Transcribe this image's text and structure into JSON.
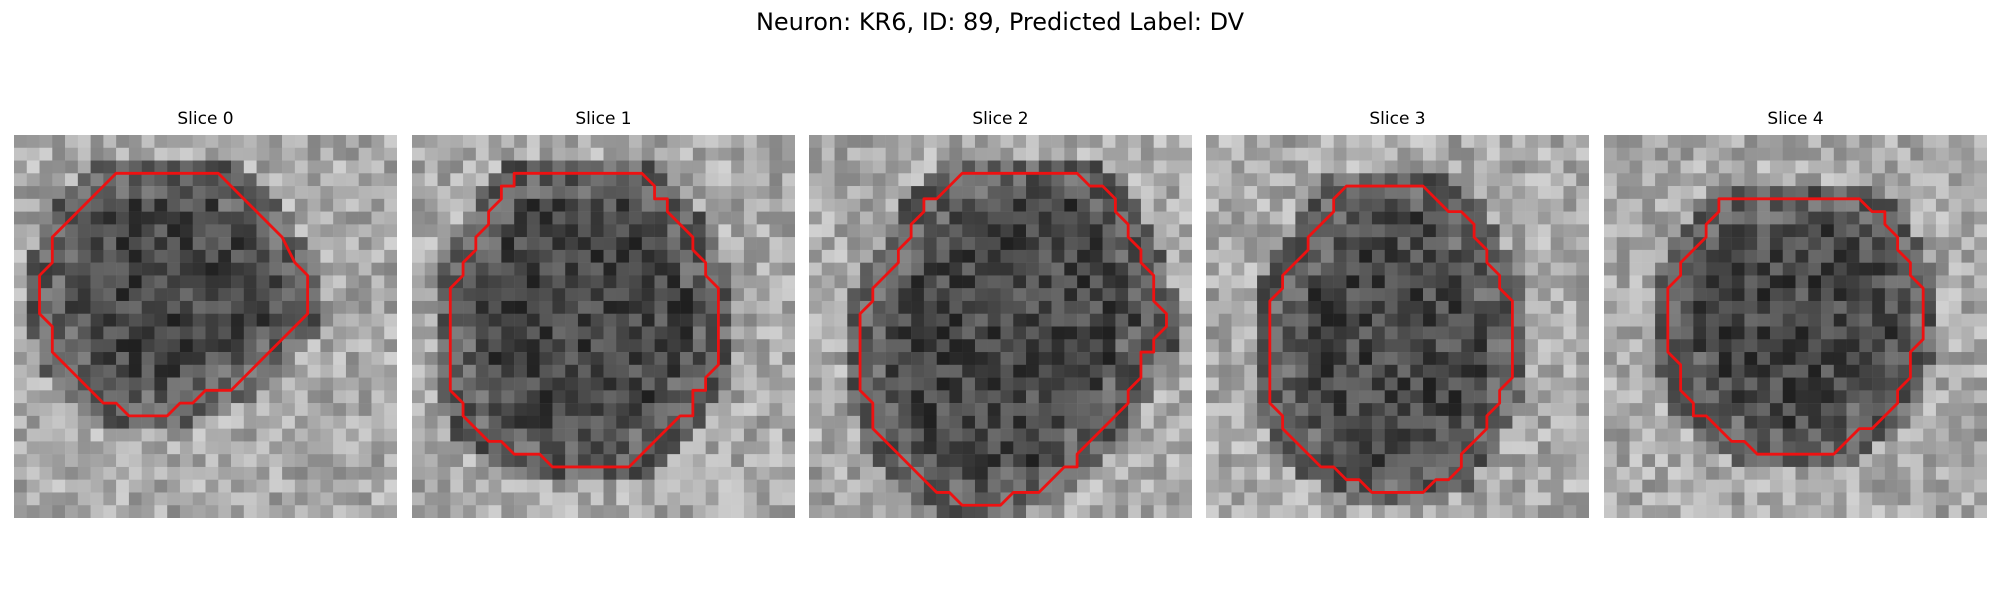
{
  "figure": {
    "title": "Neuron: KR6, ID: 89, Predicted Label: DV"
  },
  "colors": {
    "contour": "#ee1111"
  },
  "slices": [
    {
      "label": "Slice 0",
      "contour": [
        [
          9,
          3
        ],
        [
          16,
          3
        ],
        [
          18,
          5
        ],
        [
          20,
          7
        ],
        [
          21,
          8
        ],
        [
          22,
          10
        ],
        [
          23,
          11
        ],
        [
          23,
          14
        ],
        [
          22,
          15
        ],
        [
          21,
          16
        ],
        [
          20,
          17
        ],
        [
          19,
          18
        ],
        [
          18,
          19
        ],
        [
          17,
          20
        ],
        [
          15,
          20
        ],
        [
          14,
          21
        ],
        [
          13,
          21
        ],
        [
          12,
          22
        ],
        [
          11,
          22
        ],
        [
          9,
          22
        ],
        [
          8,
          21
        ],
        [
          7,
          21
        ],
        [
          6,
          20
        ],
        [
          5,
          19
        ],
        [
          4,
          18
        ],
        [
          3,
          17
        ],
        [
          3,
          15
        ],
        [
          2,
          14
        ],
        [
          2,
          11
        ],
        [
          3,
          10
        ],
        [
          3,
          8
        ],
        [
          4,
          7
        ],
        [
          5,
          6
        ],
        [
          6,
          5
        ],
        [
          7,
          4
        ],
        [
          8,
          3
        ]
      ]
    },
    {
      "label": "Slice 1",
      "contour": [
        [
          8,
          3
        ],
        [
          14,
          3
        ],
        [
          15,
          3
        ],
        [
          16,
          3
        ],
        [
          18,
          3
        ],
        [
          19,
          4
        ],
        [
          19,
          5
        ],
        [
          20,
          5
        ],
        [
          20,
          6
        ],
        [
          21,
          7
        ],
        [
          22,
          8
        ],
        [
          22,
          9
        ],
        [
          23,
          10
        ],
        [
          23,
          11
        ],
        [
          24,
          12
        ],
        [
          24,
          18
        ],
        [
          23,
          19
        ],
        [
          23,
          20
        ],
        [
          22,
          20
        ],
        [
          22,
          22
        ],
        [
          21,
          22
        ],
        [
          20,
          23
        ],
        [
          19,
          24
        ],
        [
          18,
          25
        ],
        [
          17,
          26
        ],
        [
          11,
          26
        ],
        [
          10,
          25
        ],
        [
          8,
          25
        ],
        [
          7,
          24
        ],
        [
          6,
          24
        ],
        [
          5,
          23
        ],
        [
          4,
          22
        ],
        [
          4,
          21
        ],
        [
          3,
          20
        ],
        [
          3,
          18
        ],
        [
          3,
          12
        ],
        [
          4,
          11
        ],
        [
          4,
          10
        ],
        [
          5,
          9
        ],
        [
          5,
          8
        ],
        [
          6,
          7
        ],
        [
          6,
          6
        ],
        [
          7,
          5
        ],
        [
          7,
          4
        ],
        [
          8,
          4
        ]
      ]
    },
    {
      "label": "Slice 2",
      "contour": [
        [
          12,
          3
        ],
        [
          21,
          3
        ],
        [
          22,
          4
        ],
        [
          23,
          4
        ],
        [
          24,
          5
        ],
        [
          24,
          6
        ],
        [
          25,
          7
        ],
        [
          25,
          8
        ],
        [
          26,
          9
        ],
        [
          26,
          10
        ],
        [
          27,
          11
        ],
        [
          27,
          12
        ],
        [
          27,
          13
        ],
        [
          28,
          14
        ],
        [
          28,
          15
        ],
        [
          27,
          16
        ],
        [
          27,
          17
        ],
        [
          26,
          17
        ],
        [
          26,
          19
        ],
        [
          25,
          20
        ],
        [
          25,
          21
        ],
        [
          24,
          22
        ],
        [
          23,
          23
        ],
        [
          22,
          24
        ],
        [
          21,
          25
        ],
        [
          21,
          26
        ],
        [
          20,
          26
        ],
        [
          19,
          27
        ],
        [
          18,
          28
        ],
        [
          18,
          28
        ],
        [
          16,
          28
        ],
        [
          15,
          29
        ],
        [
          12,
          29
        ],
        [
          11,
          28
        ],
        [
          10,
          28
        ],
        [
          9,
          27
        ],
        [
          8,
          26
        ],
        [
          7,
          25
        ],
        [
          6,
          24
        ],
        [
          5,
          23
        ],
        [
          5,
          21
        ],
        [
          4,
          20
        ],
        [
          4,
          14
        ],
        [
          5,
          13
        ],
        [
          5,
          12
        ],
        [
          6,
          11
        ],
        [
          7,
          10
        ],
        [
          7,
          9
        ],
        [
          8,
          8
        ],
        [
          8,
          7
        ],
        [
          9,
          6
        ],
        [
          9,
          5
        ],
        [
          10,
          5
        ],
        [
          11,
          4
        ]
      ]
    },
    {
      "label": "Slice 3",
      "contour": [
        [
          11,
          4
        ],
        [
          17,
          4
        ],
        [
          18,
          5
        ],
        [
          19,
          6
        ],
        [
          20,
          6
        ],
        [
          21,
          7
        ],
        [
          21,
          8
        ],
        [
          22,
          9
        ],
        [
          22,
          10
        ],
        [
          23,
          11
        ],
        [
          23,
          12
        ],
        [
          24,
          13
        ],
        [
          24,
          19
        ],
        [
          23,
          20
        ],
        [
          23,
          21
        ],
        [
          22,
          22
        ],
        [
          22,
          23
        ],
        [
          21,
          24
        ],
        [
          20,
          25
        ],
        [
          20,
          26
        ],
        [
          19,
          27
        ],
        [
          18,
          27
        ],
        [
          17,
          28
        ],
        [
          13,
          28
        ],
        [
          12,
          27
        ],
        [
          11,
          27
        ],
        [
          10,
          26
        ],
        [
          9,
          26
        ],
        [
          8,
          25
        ],
        [
          7,
          24
        ],
        [
          6,
          23
        ],
        [
          6,
          22
        ],
        [
          5,
          21
        ],
        [
          5,
          13
        ],
        [
          6,
          12
        ],
        [
          6,
          11
        ],
        [
          7,
          10
        ],
        [
          8,
          9
        ],
        [
          8,
          8
        ],
        [
          9,
          7
        ],
        [
          10,
          6
        ],
        [
          10,
          5
        ]
      ]
    },
    {
      "label": "Slice 4",
      "contour": [
        [
          9,
          5
        ],
        [
          20,
          5
        ],
        [
          21,
          6
        ],
        [
          22,
          6
        ],
        [
          22,
          7
        ],
        [
          23,
          8
        ],
        [
          23,
          9
        ],
        [
          24,
          10
        ],
        [
          24,
          11
        ],
        [
          25,
          12
        ],
        [
          25,
          16
        ],
        [
          24,
          17
        ],
        [
          24,
          18
        ],
        [
          24,
          19
        ],
        [
          23,
          20
        ],
        [
          23,
          21
        ],
        [
          22,
          22
        ],
        [
          21,
          23
        ],
        [
          20,
          23
        ],
        [
          19,
          24
        ],
        [
          18,
          25
        ],
        [
          12,
          25
        ],
        [
          11,
          24
        ],
        [
          10,
          24
        ],
        [
          9,
          23
        ],
        [
          8,
          22
        ],
        [
          7,
          22
        ],
        [
          7,
          21
        ],
        [
          6,
          20
        ],
        [
          6,
          18
        ],
        [
          5,
          17
        ],
        [
          5,
          12
        ],
        [
          6,
          11
        ],
        [
          6,
          10
        ],
        [
          7,
          9
        ],
        [
          8,
          8
        ],
        [
          8,
          7
        ],
        [
          9,
          6
        ]
      ]
    }
  ]
}
